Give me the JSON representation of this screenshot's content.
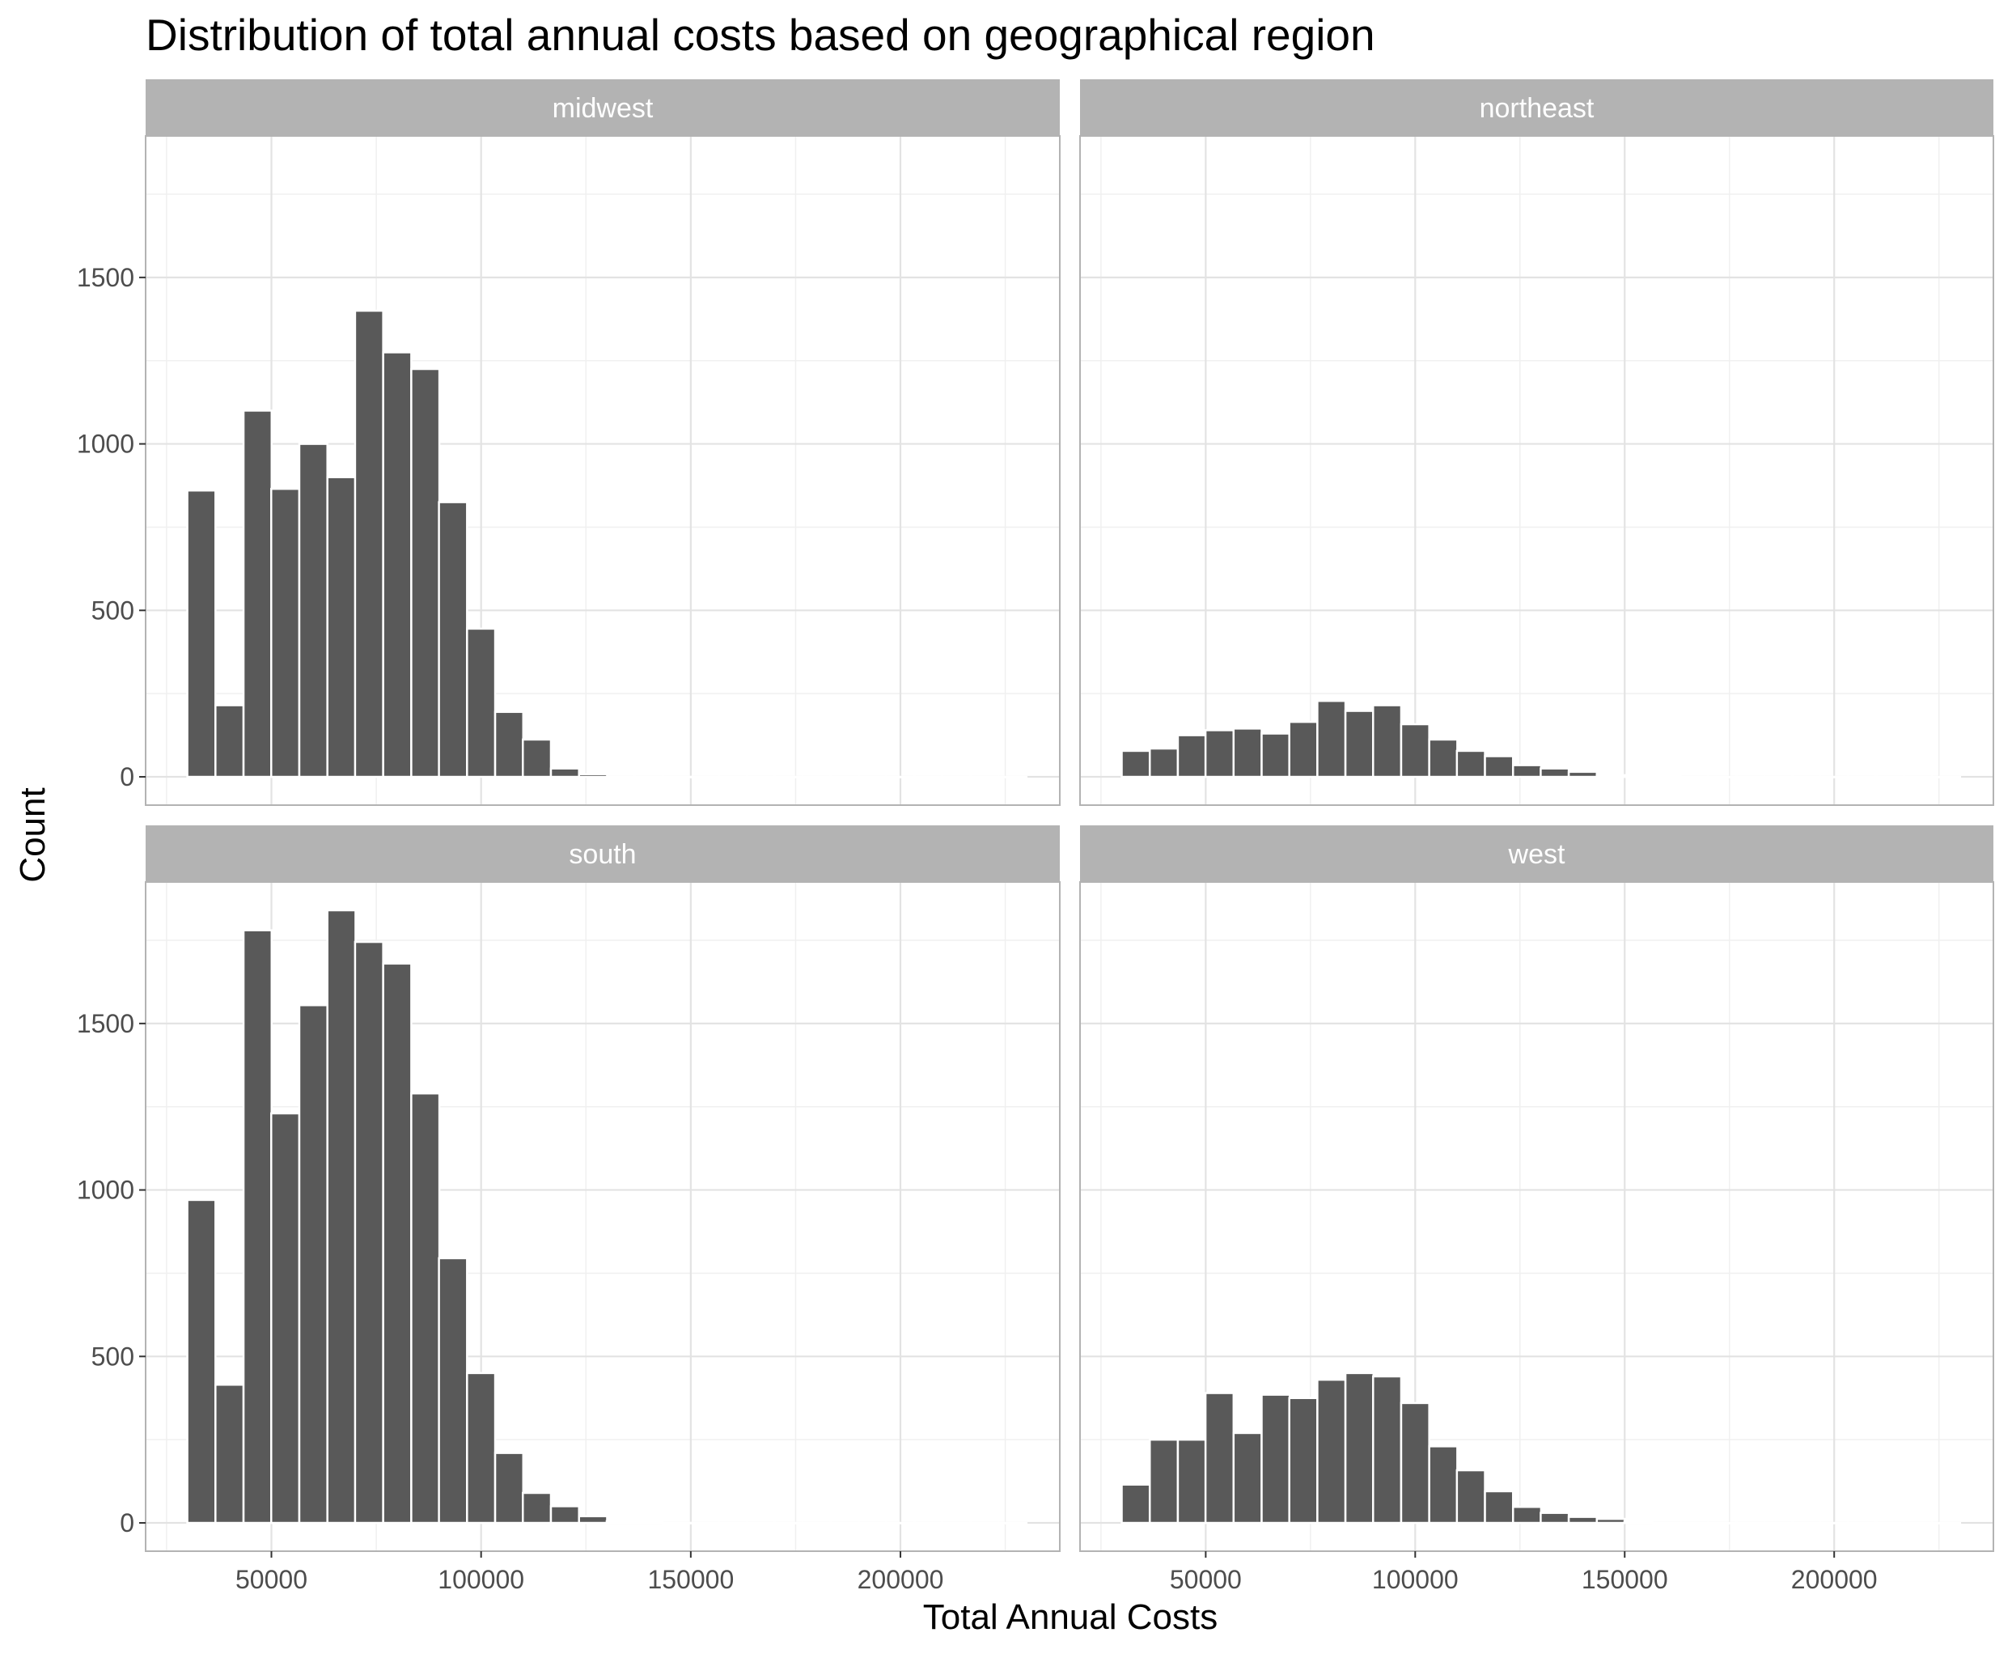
{
  "chart_data": {
    "type": "bar",
    "subtype": "faceted-histogram",
    "title": "Distribution of total annual costs based on geographical region",
    "xlabel": "Total Annual Costs",
    "ylabel": "Count",
    "xlim": [
      20000,
      238000
    ],
    "ylim": [
      -85,
      1925
    ],
    "x_ticks": [
      50000,
      100000,
      150000,
      200000
    ],
    "y_ticks": [
      0,
      500,
      1000,
      1500
    ],
    "grid": true,
    "bar_color": "#595959",
    "strip_color": "#b3b3b3",
    "bin_centers": [
      33300,
      40000,
      46700,
      53300,
      60000,
      66700,
      73300,
      80000,
      86700,
      93300,
      100000,
      106700,
      113300,
      120000,
      126700,
      133300,
      140000,
      146700,
      153300,
      160000,
      166700,
      173300,
      180000,
      186700,
      193300,
      200000,
      206700,
      213300,
      220000,
      226700
    ],
    "facets": [
      {
        "name": "midwest",
        "values": [
          860,
          215,
          1100,
          865,
          1000,
          900,
          1400,
          1275,
          1225,
          825,
          445,
          195,
          112,
          25,
          8,
          0,
          0,
          0,
          0,
          0,
          0,
          0,
          0,
          0,
          0,
          0,
          0,
          0,
          0,
          0
        ]
      },
      {
        "name": "northeast",
        "values": [
          78,
          85,
          125,
          140,
          145,
          130,
          165,
          228,
          198,
          215,
          158,
          112,
          78,
          62,
          35,
          25,
          15,
          5,
          3,
          3,
          0,
          0,
          0,
          0,
          0,
          0,
          0,
          0,
          0,
          0
        ]
      },
      {
        "name": "south",
        "values": [
          970,
          415,
          1780,
          1230,
          1555,
          1840,
          1745,
          1680,
          1290,
          795,
          450,
          210,
          90,
          50,
          20,
          5,
          3,
          0,
          0,
          0,
          0,
          0,
          0,
          0,
          0,
          0,
          0,
          0,
          0,
          0
        ]
      },
      {
        "name": "west",
        "values": [
          115,
          250,
          250,
          390,
          270,
          385,
          375,
          430,
          450,
          440,
          360,
          230,
          158,
          95,
          48,
          30,
          18,
          12,
          5,
          0,
          0,
          0,
          0,
          0,
          0,
          0,
          0,
          0,
          0,
          0
        ]
      }
    ]
  }
}
